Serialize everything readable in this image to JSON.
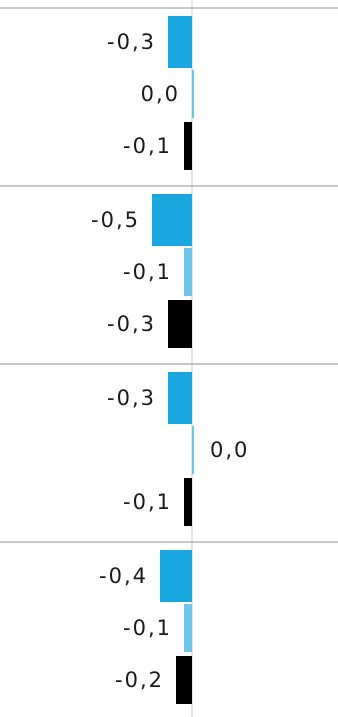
{
  "chart_data": {
    "type": "bar",
    "orientation": "horizontal",
    "groups": [
      {
        "values": [
          -0.3,
          0.0,
          -0.1
        ],
        "labels": [
          "-0,3",
          "0,0",
          "-0,1"
        ]
      },
      {
        "values": [
          -0.5,
          -0.1,
          -0.3
        ],
        "labels": [
          "-0,5",
          "-0,1",
          "-0,3"
        ]
      },
      {
        "values": [
          -0.3,
          0.0,
          -0.1
        ],
        "labels": [
          "-0,3",
          "0,0",
          "-0,1"
        ]
      },
      {
        "values": [
          -0.4,
          -0.1,
          -0.2
        ],
        "labels": [
          "-0,4",
          "-0,1",
          "-0,2"
        ]
      }
    ],
    "series_colors": [
      "#1aa7e0",
      "#6ec6ea",
      "#000000"
    ],
    "title": "",
    "xlabel": "",
    "ylabel": "",
    "grid": false,
    "legend": "none"
  }
}
